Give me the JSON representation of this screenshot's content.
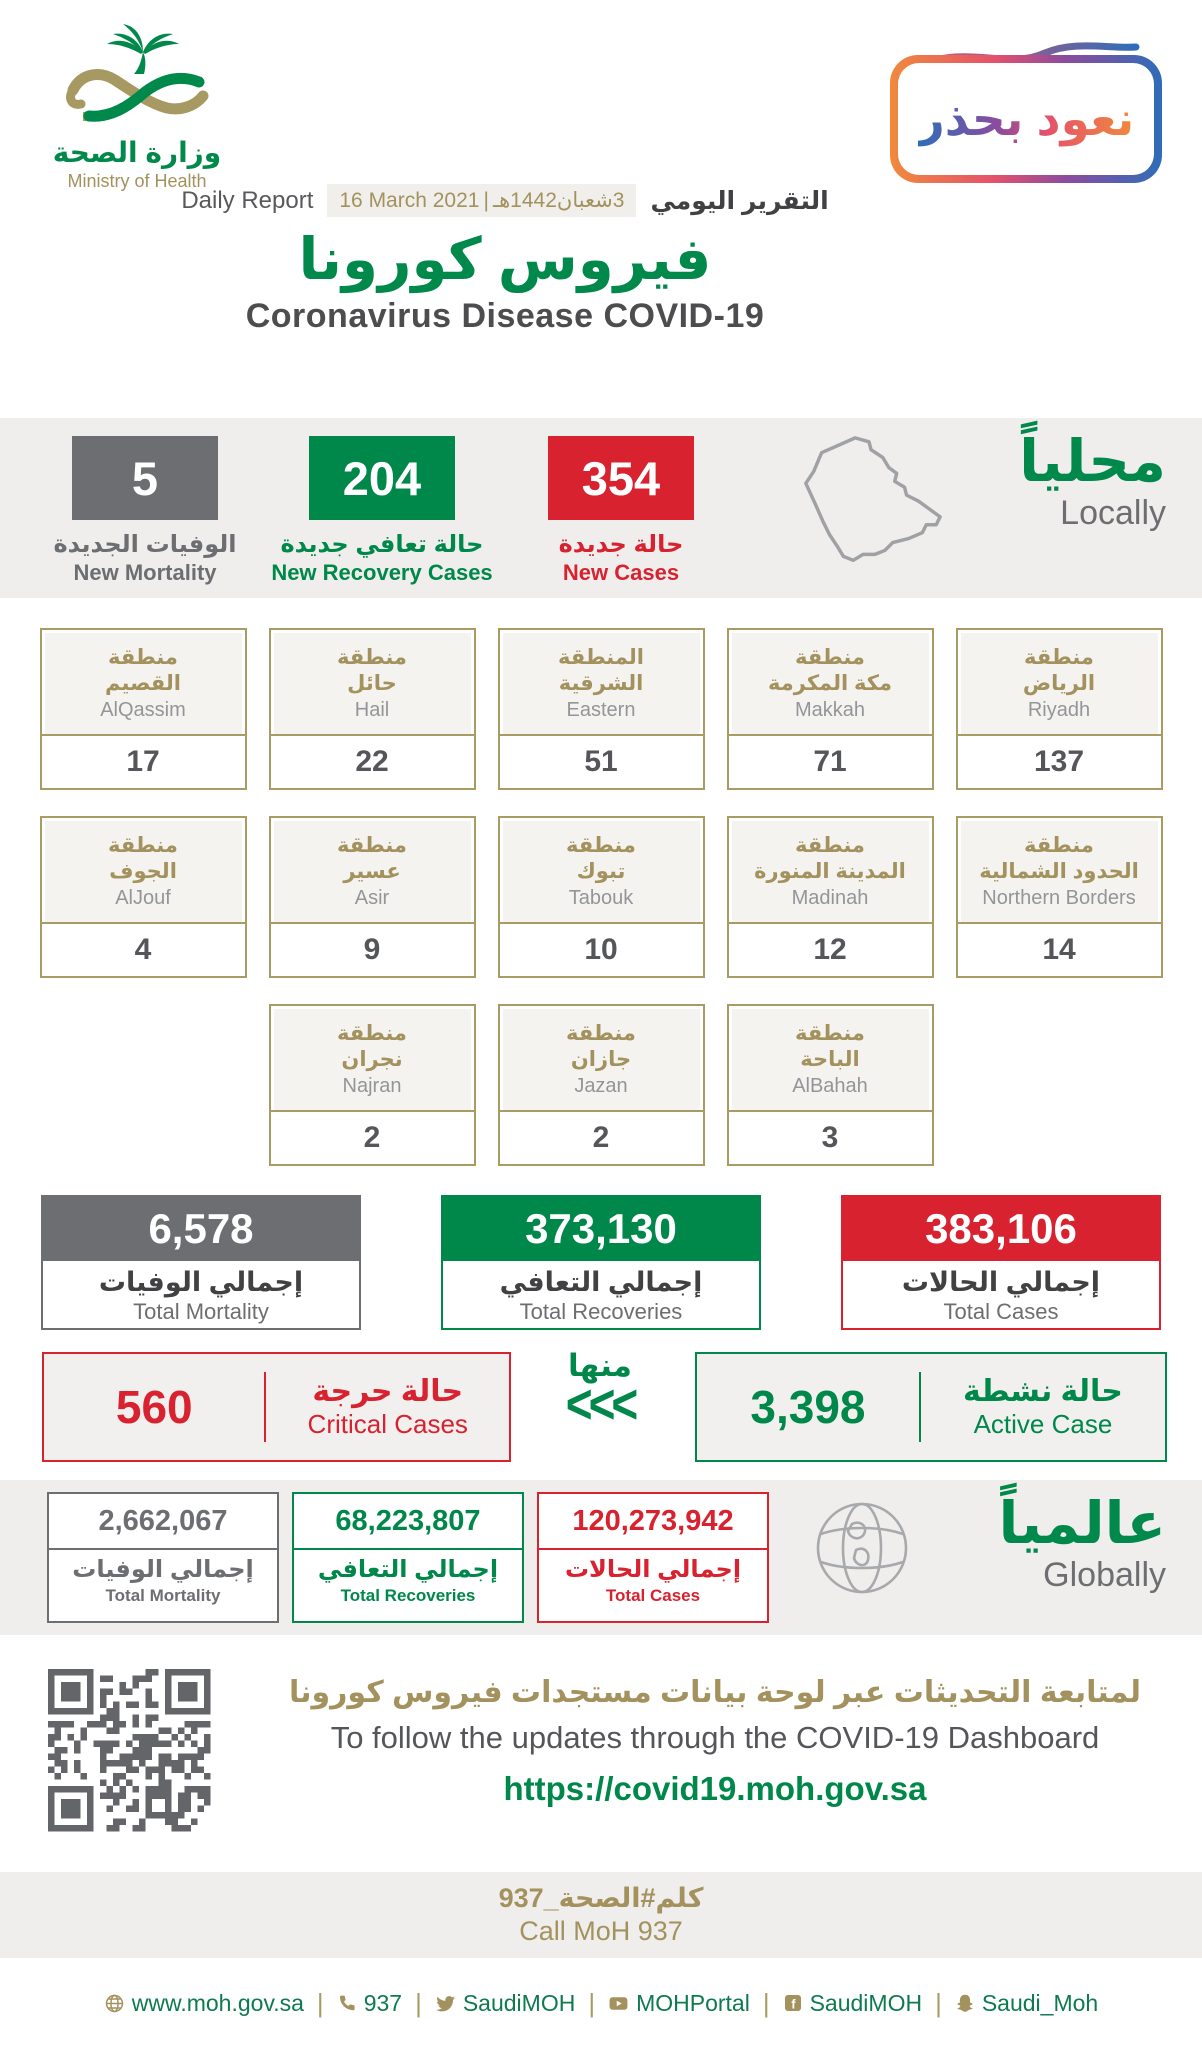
{
  "colors": {
    "green": "#00884a",
    "red": "#d8222f",
    "gray": "#6d6e71",
    "gold": "#a3925d",
    "band": "#efeeec"
  },
  "header": {
    "logo_ar": "وزارة الصحة",
    "logo_en": "Ministry of Health",
    "badge": "نعود بحذر",
    "report_en": "Daily Report",
    "report_ar": "التقرير اليومي",
    "date_en": "16 March 2021",
    "date_sep": "|",
    "date_ar": "3شعبان1442هـ",
    "title_ar": "فيروس كورونا",
    "title_en": "Coronavirus Disease COVID-19"
  },
  "locally": {
    "heading_ar": "محلياً",
    "heading_en": "Locally",
    "stats": [
      {
        "value": "5",
        "label_ar": "الوفيات الجديدة",
        "label_en": "New Mortality"
      },
      {
        "value": "204",
        "label_ar": "حالة تعافي جديدة",
        "label_en": "New Recovery Cases"
      },
      {
        "value": "354",
        "label_ar": "حالة جديدة",
        "label_en": "New Cases"
      }
    ]
  },
  "regions": [
    {
      "ar1": "منطقة",
      "ar2": "القصيم",
      "en": "AlQassim",
      "value": "17"
    },
    {
      "ar1": "منطقة",
      "ar2": "حائل",
      "en": "Hail",
      "value": "22"
    },
    {
      "ar1": "المنطقة",
      "ar2": "الشرقية",
      "en": "Eastern",
      "value": "51"
    },
    {
      "ar1": "منطقة",
      "ar2": "مكة المكرمة",
      "en": "Makkah",
      "value": "71"
    },
    {
      "ar1": "منطقة",
      "ar2": "الرياض",
      "en": "Riyadh",
      "value": "137"
    },
    {
      "ar1": "منطقة",
      "ar2": "الجوف",
      "en": "AlJouf",
      "value": "4"
    },
    {
      "ar1": "منطقة",
      "ar2": "عسير",
      "en": "Asir",
      "value": "9"
    },
    {
      "ar1": "منطقة",
      "ar2": "تبوك",
      "en": "Tabouk",
      "value": "10"
    },
    {
      "ar1": "منطقة",
      "ar2": "المدينة المنورة",
      "en": "Madinah",
      "value": "12"
    },
    {
      "ar1": "منطقة",
      "ar2": "الحدود الشمالية",
      "en": "Northern Borders",
      "value": "14"
    },
    {
      "ar1": "منطقة",
      "ar2": "نجران",
      "en": "Najran",
      "value": "2"
    },
    {
      "ar1": "منطقة",
      "ar2": "جازان",
      "en": "Jazan",
      "value": "2"
    },
    {
      "ar1": "منطقة",
      "ar2": "الباحة",
      "en": "AlBahah",
      "value": "3"
    }
  ],
  "totals": [
    {
      "value": "6,578",
      "ar": "إجمالي الوفيات",
      "en": "Total Mortality"
    },
    {
      "value": "373,130",
      "ar": "إجمالي التعافي",
      "en": "Total Recoveries"
    },
    {
      "value": "383,106",
      "ar": "إجمالي الحالات",
      "en": "Total Cases"
    }
  ],
  "cases_row": {
    "critical_value": "560",
    "critical_ar": "حالة حرجة",
    "critical_en": "Critical Cases",
    "of_which": "منها",
    "chevrons": "<<<",
    "active_value": "3,398",
    "active_ar": "حالة نشطة",
    "active_en": "Active Case"
  },
  "globally": {
    "heading_ar": "عالمياً",
    "heading_en": "Globally",
    "stats": [
      {
        "value": "2,662,067",
        "ar": "إجمالي الوفيات",
        "en": "Total Mortality"
      },
      {
        "value": "68,223,807",
        "ar": "إجمالي التعافي",
        "en": "Total Recoveries"
      },
      {
        "value": "120,273,942",
        "ar": "إجمالي الحالات",
        "en": "Total Cases"
      }
    ]
  },
  "dashboard": {
    "ar": "لمتابعة التحديثات عبر لوحة بيانات مستجدات فيروس كورونا",
    "en": "To follow the updates through the COVID-19 Dashboard",
    "url": "https://covid19.moh.gov.sa"
  },
  "call": {
    "ar": "كلم#الصحة_937",
    "en": "Call MoH 937"
  },
  "footer": {
    "separator": "|",
    "items": [
      {
        "icon": "website-globe-icon",
        "label": "www.moh.gov.sa"
      },
      {
        "icon": "phone-icon",
        "label": "937"
      },
      {
        "icon": "twitter-icon",
        "label": "SaudiMOH"
      },
      {
        "icon": "youtube-icon",
        "label": "MOHPortal"
      },
      {
        "icon": "facebook-icon",
        "label": "SaudiMOH"
      },
      {
        "icon": "snapchat-icon",
        "label": "Saudi_Moh"
      }
    ]
  }
}
